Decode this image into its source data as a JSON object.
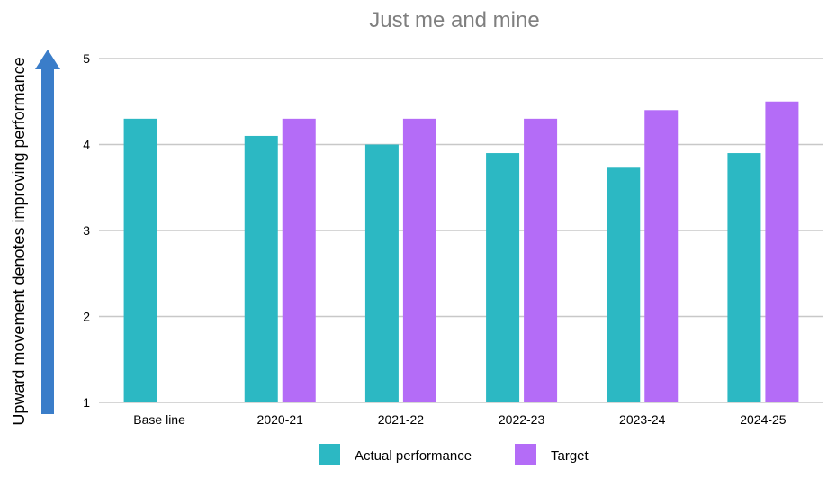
{
  "chart_data": {
    "type": "bar",
    "title": "Just me and mine",
    "ylabel": "Upward movement denotes improving performance",
    "xlabel": "",
    "ylim": [
      1,
      5
    ],
    "yticks": [
      1,
      2,
      3,
      4,
      5
    ],
    "grid": true,
    "legend_position": "bottom",
    "categories": [
      "Base line",
      "2020-21",
      "2021-22",
      "2022-23",
      "2023-24",
      "2024-25"
    ],
    "series": [
      {
        "name": "Actual performance",
        "color": "#2cb8c3",
        "values": [
          4.3,
          4.1,
          4.0,
          3.9,
          3.73,
          3.9
        ]
      },
      {
        "name": "Target",
        "color": "#b46cf7",
        "values": [
          null,
          4.3,
          4.3,
          4.3,
          4.4,
          4.5
        ]
      }
    ],
    "arrow_color": "#3a7dc9"
  }
}
